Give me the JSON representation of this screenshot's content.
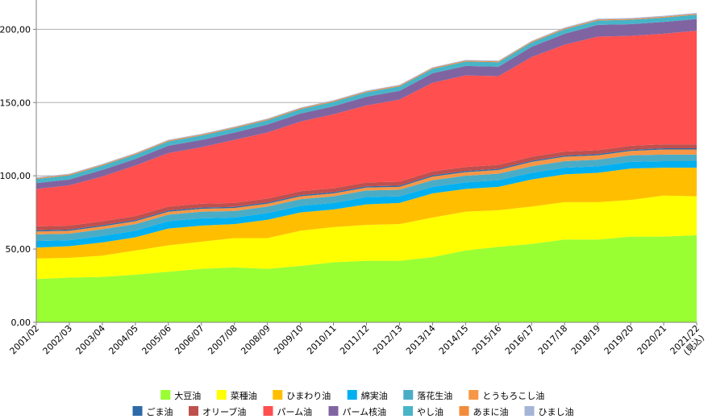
{
  "chart_data": {
    "type": "area",
    "stacked": true,
    "ylim": [
      0,
      220
    ],
    "yticks": [
      0,
      50,
      100,
      150,
      200
    ],
    "ytick_labels": [
      "0,00",
      "50,00",
      "100,00",
      "150,00",
      "200,00"
    ],
    "categories": [
      "2001/02",
      "2002/03",
      "2003/04",
      "2004/05",
      "2005/06",
      "2006/07",
      "2007/08",
      "2008/09",
      "2009/10",
      "2010/11",
      "2011/12",
      "2012/13",
      "2013/14",
      "2014/15",
      "2015/16",
      "2016/17",
      "2017/18",
      "2018/19",
      "2019/20",
      "2020/21",
      "2021/22"
    ],
    "last_category_note": "(見込)",
    "legend_position": "bottom",
    "grid": "horizontal",
    "series": [
      {
        "name": "大豆油",
        "color": "#99ff33",
        "values": [
          29.5,
          30.5,
          31.0,
          32.5,
          34.5,
          36.5,
          37.5,
          36.5,
          38.5,
          41.0,
          42.0,
          42.0,
          44.5,
          49.0,
          51.5,
          53.5,
          56.5,
          56.5,
          58.5,
          58.5,
          59.5
        ]
      },
      {
        "name": "菜種油",
        "color": "#ffff00",
        "values": [
          14.0,
          13.5,
          14.5,
          16.5,
          18.0,
          18.5,
          20.0,
          21.0,
          24.0,
          24.0,
          24.5,
          25.0,
          27.0,
          26.5,
          25.0,
          25.5,
          25.5,
          25.5,
          25.0,
          28.0,
          26.5
        ]
      },
      {
        "name": "ひまわり油",
        "color": "#ffbf00",
        "values": [
          7.5,
          8.0,
          9.0,
          9.0,
          11.5,
          11.0,
          9.5,
          12.5,
          12.5,
          12.0,
          14.0,
          14.5,
          16.5,
          15.5,
          16.0,
          18.5,
          19.0,
          20.0,
          21.5,
          19.0,
          19.5
        ]
      },
      {
        "name": "綿実油",
        "color": "#00b0f0",
        "values": [
          4.5,
          4.0,
          4.5,
          4.5,
          5.0,
          5.0,
          4.5,
          4.5,
          4.5,
          4.5,
          5.0,
          4.5,
          4.5,
          4.5,
          4.5,
          4.5,
          4.5,
          4.5,
          4.5,
          4.5,
          4.5
        ]
      },
      {
        "name": "落花生油",
        "color": "#4bacc6",
        "values": [
          4.5,
          4.5,
          4.5,
          4.5,
          4.5,
          4.5,
          4.5,
          4.5,
          4.5,
          4.5,
          4.5,
          4.5,
          4.5,
          4.5,
          4.5,
          4.5,
          4.5,
          4.5,
          4.5,
          4.5,
          4.5
        ]
      },
      {
        "name": "とうもろこし油",
        "color": "#f79646",
        "values": [
          2.0,
          2.0,
          2.0,
          2.0,
          2.0,
          2.0,
          2.0,
          2.0,
          2.0,
          2.0,
          2.0,
          2.0,
          2.5,
          2.5,
          2.5,
          3.0,
          3.0,
          3.0,
          3.0,
          3.5,
          3.5
        ]
      },
      {
        "name": "ごま油",
        "color": "#2e6aa8",
        "values": [
          0.8,
          0.8,
          0.8,
          0.8,
          0.8,
          0.8,
          0.8,
          0.8,
          0.8,
          0.8,
          0.8,
          0.8,
          0.8,
          0.8,
          0.8,
          0.8,
          0.8,
          0.8,
          0.8,
          0.8,
          0.8
        ]
      },
      {
        "name": "オリーブ油",
        "color": "#c0504d",
        "values": [
          2.7,
          2.7,
          2.7,
          2.7,
          2.7,
          2.7,
          2.7,
          2.7,
          2.7,
          2.7,
          2.7,
          2.7,
          2.7,
          2.7,
          2.7,
          2.7,
          2.7,
          2.7,
          2.7,
          2.7,
          2.7
        ]
      },
      {
        "name": "パーム油",
        "color": "#ff4f4f",
        "values": [
          25.5,
          27.5,
          30.5,
          34.5,
          36.5,
          38.5,
          43.0,
          45.0,
          47.5,
          50.5,
          52.5,
          56.0,
          60.5,
          62.5,
          60.5,
          68.0,
          73.0,
          77.5,
          75.0,
          75.5,
          77.5
        ]
      },
      {
        "name": "パーム核油",
        "color": "#8064a2",
        "values": [
          4.0,
          4.0,
          4.5,
          4.5,
          5.0,
          5.0,
          5.0,
          5.5,
          5.5,
          5.5,
          6.0,
          6.0,
          6.5,
          6.5,
          6.5,
          7.0,
          7.5,
          8.0,
          8.0,
          8.0,
          8.0
        ]
      },
      {
        "name": "やし油",
        "color": "#48b4c8",
        "values": [
          2.8,
          2.8,
          3.0,
          3.0,
          3.0,
          3.0,
          3.0,
          3.0,
          3.0,
          3.0,
          3.0,
          3.0,
          3.0,
          3.0,
          3.0,
          3.0,
          3.0,
          3.0,
          3.0,
          3.0,
          3.0
        ]
      },
      {
        "name": "あまに油",
        "color": "#f28c3a",
        "values": [
          0.6,
          0.6,
          0.6,
          0.6,
          0.6,
          0.6,
          0.6,
          0.6,
          0.6,
          0.6,
          0.6,
          0.6,
          0.6,
          0.6,
          0.6,
          0.6,
          0.6,
          0.6,
          0.6,
          0.6,
          0.6
        ]
      },
      {
        "name": "ひまし油",
        "color": "#a5b5d8",
        "values": [
          0.5,
          0.5,
          0.5,
          0.5,
          0.5,
          0.5,
          0.5,
          0.5,
          0.5,
          0.5,
          0.5,
          0.5,
          0.5,
          0.5,
          0.5,
          0.5,
          0.6,
          0.6,
          0.6,
          0.6,
          0.6
        ]
      }
    ]
  }
}
